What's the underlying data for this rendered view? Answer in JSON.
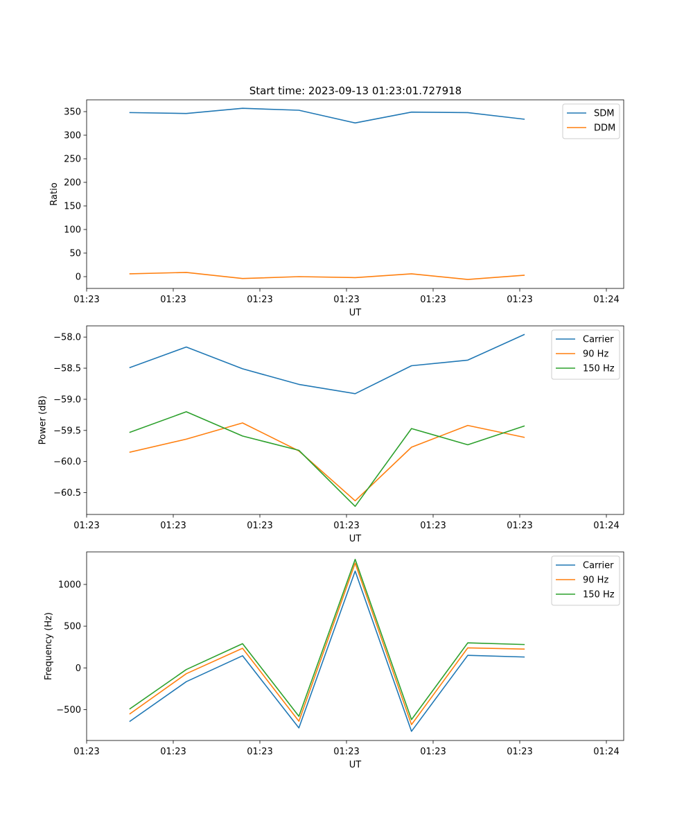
{
  "chart_data": [
    {
      "type": "line",
      "title": "Start time: 2023-09-13 01:23:01.727918",
      "xlabel": "UT",
      "ylabel": "Ratio",
      "xlim": [
        0,
        6.2
      ],
      "ylim": [
        -25,
        375
      ],
      "xticks": [
        {
          "value": 0.0,
          "label": "01:23"
        },
        {
          "value": 1.0,
          "label": "01:23"
        },
        {
          "value": 2.0,
          "label": "01:23"
        },
        {
          "value": 3.0,
          "label": "01:23"
        },
        {
          "value": 4.0,
          "label": "01:23"
        },
        {
          "value": 5.0,
          "label": "01:23"
        },
        {
          "value": 6.0,
          "label": "01:24"
        }
      ],
      "yticks": [
        0,
        50,
        100,
        150,
        200,
        250,
        300,
        350
      ],
      "x": [
        0.5,
        1.15,
        1.8,
        2.45,
        3.1,
        3.75,
        4.4,
        5.05
      ],
      "series": [
        {
          "name": "SDM",
          "color": "#1f77b4",
          "values": [
            348,
            346,
            357,
            353,
            326,
            349,
            348,
            334
          ]
        },
        {
          "name": "DDM",
          "color": "#ff7f0e",
          "values": [
            6,
            9,
            -4,
            0,
            -2,
            6,
            -6,
            3
          ]
        }
      ],
      "legend": "upper right"
    },
    {
      "type": "line",
      "title": "",
      "xlabel": "UT",
      "ylabel": "Power (dB)",
      "xlim": [
        0,
        6.2
      ],
      "ylim": [
        -60.85,
        -57.82
      ],
      "xticks": [
        {
          "value": 0.0,
          "label": "01:23"
        },
        {
          "value": 1.0,
          "label": "01:23"
        },
        {
          "value": 2.0,
          "label": "01:23"
        },
        {
          "value": 3.0,
          "label": "01:23"
        },
        {
          "value": 4.0,
          "label": "01:23"
        },
        {
          "value": 5.0,
          "label": "01:23"
        },
        {
          "value": 6.0,
          "label": "01:24"
        }
      ],
      "yticks": [
        -60.5,
        -60.0,
        -59.5,
        -59.0,
        -58.5,
        -58.0
      ],
      "ytick_labels": [
        "−60.5",
        "−60.0",
        "−59.5",
        "−59.0",
        "−58.5",
        "−58.0"
      ],
      "x": [
        0.5,
        1.15,
        1.8,
        2.45,
        3.1,
        3.75,
        4.4,
        5.05
      ],
      "series": [
        {
          "name": "Carrier",
          "color": "#1f77b4",
          "values": [
            -58.49,
            -58.16,
            -58.51,
            -58.76,
            -58.91,
            -58.46,
            -58.37,
            -57.96
          ]
        },
        {
          "name": "90 Hz",
          "color": "#ff7f0e",
          "values": [
            -59.85,
            -59.64,
            -59.38,
            -59.83,
            -60.63,
            -59.77,
            -59.42,
            -59.61
          ]
        },
        {
          "name": "150 Hz",
          "color": "#2ca02c",
          "values": [
            -59.53,
            -59.2,
            -59.59,
            -59.82,
            -60.72,
            -59.47,
            -59.73,
            -59.43
          ]
        }
      ],
      "legend": "upper right"
    },
    {
      "type": "line",
      "title": "",
      "xlabel": "UT",
      "ylabel": "Frequency (Hz)",
      "xlim": [
        0,
        6.2
      ],
      "ylim": [
        -870,
        1390
      ],
      "xticks": [
        {
          "value": 0.0,
          "label": "01:23"
        },
        {
          "value": 1.0,
          "label": "01:23"
        },
        {
          "value": 2.0,
          "label": "01:23"
        },
        {
          "value": 3.0,
          "label": "01:23"
        },
        {
          "value": 4.0,
          "label": "01:23"
        },
        {
          "value": 5.0,
          "label": "01:23"
        },
        {
          "value": 6.0,
          "label": "01:24"
        }
      ],
      "yticks": [
        -500,
        0,
        500,
        1000
      ],
      "ytick_labels": [
        "−500",
        "0",
        "500",
        "1000"
      ],
      "x": [
        0.5,
        1.15,
        1.8,
        2.45,
        3.1,
        3.75,
        4.4,
        5.05
      ],
      "series": [
        {
          "name": "Carrier",
          "color": "#1f77b4",
          "values": [
            -640,
            -165,
            145,
            -720,
            1160,
            -760,
            150,
            130
          ]
        },
        {
          "name": "90 Hz",
          "color": "#ff7f0e",
          "values": [
            -550,
            -70,
            235,
            -640,
            1255,
            -680,
            240,
            225
          ]
        },
        {
          "name": "150 Hz",
          "color": "#2ca02c",
          "values": [
            -490,
            -20,
            290,
            -580,
            1300,
            -620,
            300,
            280
          ]
        }
      ],
      "legend": "upper right"
    }
  ]
}
